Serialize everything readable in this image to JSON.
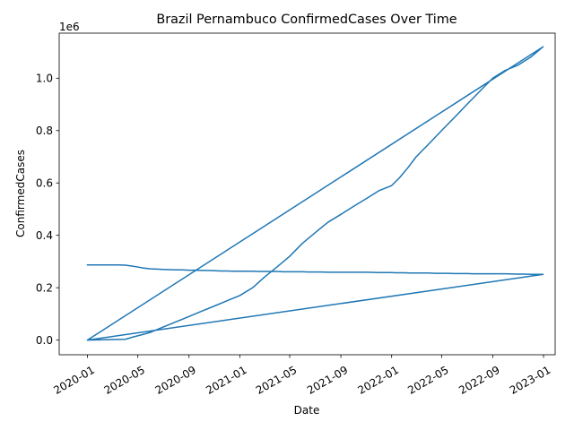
{
  "chart_data": {
    "type": "line",
    "title": "Brazil Pernambuco ConfirmedCases Over Time",
    "xlabel": "Date",
    "ylabel": "ConfirmedCases",
    "offset_label": "1e6",
    "x_ticks": [
      "2020-01",
      "2020-05",
      "2020-09",
      "2021-01",
      "2021-05",
      "2021-09",
      "2022-01",
      "2022-05",
      "2022-09",
      "2023-01"
    ],
    "y_ticks": [
      "0.0",
      "0.2",
      "0.4",
      "0.6",
      "0.8",
      "1.0"
    ],
    "ylim": [
      -0.056,
      1.172
    ],
    "xlim": [
      "2019-10-25",
      "2023-01-29"
    ],
    "grid": false,
    "colors": {
      "series": "#1f77b4"
    },
    "series": [
      {
        "x": [
          "2020-01-01",
          "2020-03-15",
          "2020-04-01",
          "2020-04-15",
          "2020-05-01",
          "2020-05-15",
          "2020-06-01",
          "2020-06-15",
          "2020-07-01",
          "2020-07-15",
          "2020-08-01",
          "2020-08-15",
          "2020-09-01",
          "2020-09-15",
          "2020-10-01",
          "2020-10-15",
          "2020-11-01",
          "2020-11-15",
          "2020-12-01",
          "2020-12-15",
          "2021-01-01",
          "2021-01-15",
          "2021-02-01",
          "2021-02-15",
          "2021-03-01",
          "2021-03-15",
          "2021-04-01",
          "2021-04-15",
          "2021-05-01",
          "2021-05-15",
          "2021-06-01",
          "2021-06-15",
          "2021-07-01",
          "2021-07-15",
          "2021-08-01",
          "2021-09-01",
          "2021-10-01",
          "2021-11-01",
          "2021-12-01",
          "2021-12-15",
          "2022-01-01",
          "2022-01-10",
          "2022-01-20",
          "2022-02-01",
          "2022-02-15",
          "2022-03-01",
          "2022-03-15",
          "2022-04-01",
          "2022-04-15",
          "2022-05-01",
          "2022-05-15",
          "2022-06-01",
          "2022-06-15",
          "2022-07-01",
          "2022-07-15",
          "2022-08-01",
          "2022-09-01",
          "2022-10-01",
          "2022-11-01",
          "2022-11-15",
          "2022-12-01",
          "2022-12-15",
          "2022-12-31",
          "2020-01-01",
          "2020-04-01",
          "2020-04-20",
          "2020-05-10",
          "2020-06-01",
          "2020-07-01",
          "2020-08-01",
          "2020-09-01",
          "2020-10-01",
          "2020-11-01",
          "2020-12-01",
          "2021-01-01",
          "2021-02-01",
          "2021-03-01",
          "2021-04-01",
          "2021-05-01",
          "2021-06-01",
          "2021-07-01",
          "2021-08-01",
          "2021-09-01",
          "2021-10-01",
          "2021-11-01",
          "2021-12-01",
          "2022-01-01",
          "2022-01-20",
          "2022-02-10",
          "2022-03-01",
          "2022-04-01",
          "2022-05-01",
          "2022-06-01",
          "2022-07-01",
          "2022-08-01",
          "2022-09-01",
          "2022-10-01",
          "2022-11-01",
          "2022-12-01",
          "2022-12-31",
          "2020-01-01"
        ],
        "y": [
          0.287,
          0.287,
          0.286,
          0.283,
          0.279,
          0.275,
          0.272,
          0.271,
          0.27,
          0.269,
          0.268,
          0.268,
          0.267,
          0.267,
          0.266,
          0.266,
          0.265,
          0.264,
          0.264,
          0.263,
          0.263,
          0.263,
          0.263,
          0.262,
          0.262,
          0.262,
          0.262,
          0.261,
          0.261,
          0.261,
          0.261,
          0.26,
          0.26,
          0.26,
          0.259,
          0.259,
          0.259,
          0.259,
          0.258,
          0.258,
          0.258,
          0.257,
          0.257,
          0.257,
          0.256,
          0.256,
          0.256,
          0.256,
          0.255,
          0.255,
          0.255,
          0.254,
          0.254,
          0.254,
          0.253,
          0.253,
          0.253,
          0.253,
          0.252,
          0.252,
          0.251,
          0.251,
          0.251,
          0.0,
          0.003,
          0.012,
          0.02,
          0.03,
          0.05,
          0.07,
          0.09,
          0.11,
          0.13,
          0.15,
          0.17,
          0.2,
          0.24,
          0.28,
          0.32,
          0.37,
          0.41,
          0.45,
          0.48,
          0.51,
          0.54,
          0.57,
          0.59,
          0.62,
          0.66,
          0.7,
          0.75,
          0.8,
          0.85,
          0.9,
          0.95,
          1.0,
          1.03,
          1.05,
          1.08,
          1.12,
          0.0
        ]
      }
    ]
  }
}
